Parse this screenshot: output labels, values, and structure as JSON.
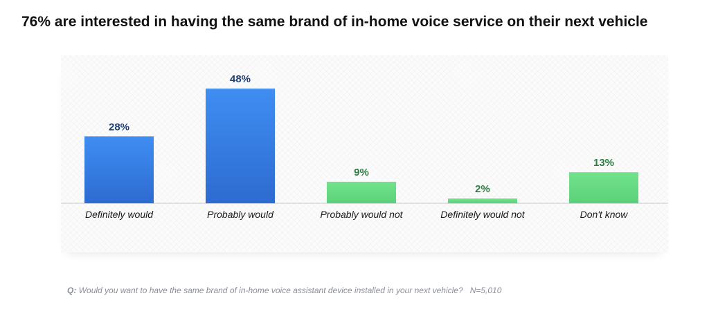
{
  "title": "76% are interested in having the same brand of in-home voice service on their next vehicle",
  "footnote": {
    "q_label": "Q:",
    "question": "Would you want to have the same brand of in-home voice assistant device installed in your next vehicle?",
    "sample": "N=5,010"
  },
  "colors": {
    "blue_top": "#3f8ef2",
    "blue_bottom": "#2d6bd0",
    "green_top": "#72e38c",
    "green_bottom": "#5bd07a",
    "blue_label": "#1f3f73",
    "green_label": "#2f7d43",
    "axis": "#c8c8c8"
  },
  "chart_data": {
    "type": "bar",
    "title": "76% are interested in having the same brand of in-home voice service on their next vehicle",
    "xlabel": "",
    "ylabel": "",
    "categories": [
      "Definitely would",
      "Probably would",
      "Probably would not",
      "Definitely would not",
      "Don't know"
    ],
    "values": [
      28,
      48,
      9,
      2,
      13
    ],
    "value_labels": [
      "28%",
      "48%",
      "9%",
      "2%",
      "13%"
    ],
    "bar_color_group": [
      "blue",
      "blue",
      "green",
      "green",
      "green"
    ],
    "ylim": [
      0,
      55
    ],
    "grid": false,
    "legend": "none"
  }
}
